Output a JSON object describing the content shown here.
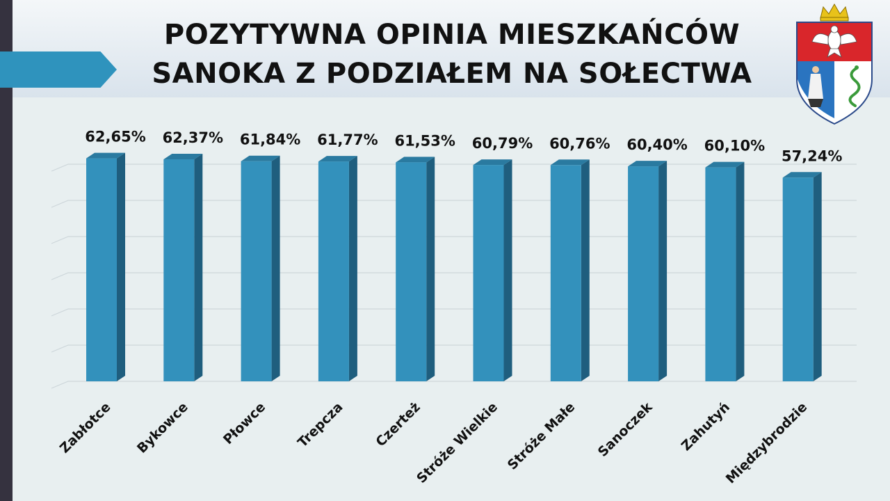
{
  "slide": {
    "title_line1": "POZYTYWNA OPINIA MIESZKAŃCÓW",
    "title_line2": "SANOKA Z PODZIAŁEM NA SOŁECTWA",
    "logo_icon": "coat-of-arms-icon",
    "colors": {
      "bar_front": "#3391bc",
      "bar_side": "#1f5e7e",
      "bar_top": "#2a7aa0",
      "accent": "#2f93bd",
      "background": "#e8eff0"
    }
  },
  "chart_data": {
    "type": "bar",
    "categories": [
      "Zabłotce",
      "Bykowce",
      "Płowce",
      "Trepcza",
      "Czerteż",
      "Stróże Wielkie",
      "Stróże Małe",
      "Sanoczek",
      "Zahutyń",
      "Międzybrodzie"
    ],
    "values": [
      62.65,
      62.37,
      61.84,
      61.77,
      61.53,
      60.79,
      60.76,
      60.4,
      60.1,
      57.24
    ],
    "value_labels": [
      "62,65%",
      "62,37%",
      "61,84%",
      "61,77%",
      "61,53%",
      "60,79%",
      "60,76%",
      "60,40%",
      "60,10%",
      "57,24%"
    ],
    "title": "POZYTYWNA OPINIA MIESZKAŃCÓW SANOKA Z PODZIAŁEM NA SOŁECTWA",
    "ylim": [
      0,
      70
    ],
    "grid": true,
    "style": "3d-column"
  }
}
